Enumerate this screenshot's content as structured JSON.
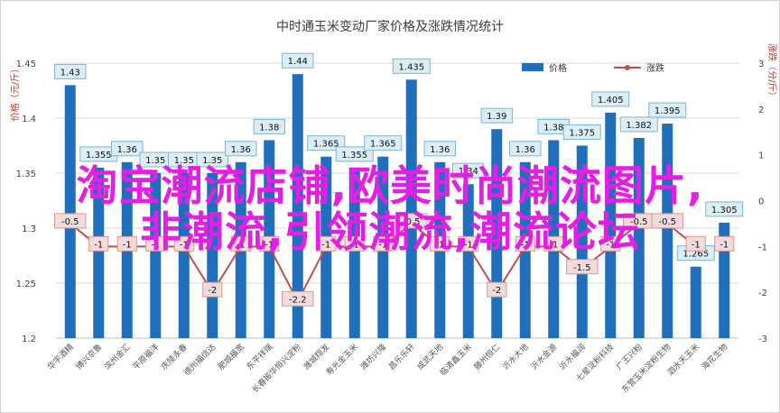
{
  "chart_data": {
    "type": "bar",
    "title": "中时通玉米变动厂家价格及涨跌情况统计",
    "ylabel_left": "价格（元/斤）",
    "ylabel_right": "涨跌（分/斤）",
    "ylim_left": [
      1.2,
      1.45
    ],
    "yticks_left": [
      "1.2",
      "1.25",
      "1.3",
      "1.35",
      "1.4",
      "1.45"
    ],
    "ylim_right": [
      -3,
      3
    ],
    "yticks_right": [
      "-3",
      "-2",
      "-1",
      "0",
      "1",
      "2",
      "3"
    ],
    "categories": [
      "华宇酒精",
      "博兴京鲁",
      "滨州金汇",
      "平原福洋",
      "庆陵永春",
      "德州福信达",
      "肥城福宽",
      "东平祥瑞",
      "长春振华恒兴淀粉",
      "潍城翔发",
      "寿光金玉米",
      "潍坊兴隆",
      "昌乐乐轩",
      "成武天地",
      "临清鑫玉米",
      "滕州恒仁",
      "沂水大地",
      "沂水金源",
      "沂水福润",
      "七星淀粉科技",
      "广王兴粉",
      "东营玉米淀粉生物",
      "泗水天玉米",
      "海花生物"
    ],
    "series": [
      {
        "name": "价格",
        "values": [
          1.43,
          1.355,
          1.36,
          1.35,
          1.35,
          1.35,
          1.36,
          1.38,
          1.44,
          1.365,
          1.355,
          1.365,
          1.435,
          1.36,
          1.34,
          1.39,
          1.36,
          1.38,
          1.375,
          1.405,
          1.382,
          1.395,
          1.265,
          1.305
        ]
      },
      {
        "name": "涨跌",
        "values": [
          -0.5,
          -1,
          -1,
          -1,
          -1,
          -2,
          -1,
          -1,
          -2.2,
          -1,
          -1,
          -1,
          -0.5,
          -1,
          -1,
          -2,
          -1,
          -1,
          -1.5,
          -1,
          -0.5,
          -0.5,
          -1,
          -1
        ]
      }
    ],
    "bar_labels": [
      "1.43",
      "1.355",
      "1.36",
      "1.35",
      "1.35",
      "1.35",
      "1.36",
      "1.38",
      "1.44",
      "1.365",
      "1.355",
      "1.365",
      "1.435",
      "1.36",
      "1.34",
      "1.39",
      "1.36",
      "1.38",
      "1.375",
      "1.405",
      "1.382",
      "1.395",
      "1.265",
      "1.305"
    ],
    "line_labels": [
      "-0.5",
      "-1",
      "-1",
      "-1",
      "-1",
      "-2",
      "-1",
      "-1",
      "-2.2",
      "-1",
      "-1",
      "-1",
      "-0.5",
      "-1",
      "-1",
      "-2",
      "-1",
      "-1",
      "-1.5",
      "-1",
      "-0.5",
      "-0.5",
      "-1",
      "-1"
    ],
    "legend": {
      "position": "top-right"
    },
    "grid": true,
    "colors": {
      "bar": "#1f6fbd",
      "line": "#c0504d",
      "label_box": "#dbeef6",
      "line_label_box": "#f2dcdb"
    }
  },
  "overlay": {
    "line1": "淘宝潮流店铺,欧美时尚潮流图片,",
    "line2": "非潮流,引领潮流,潮流论坛"
  }
}
